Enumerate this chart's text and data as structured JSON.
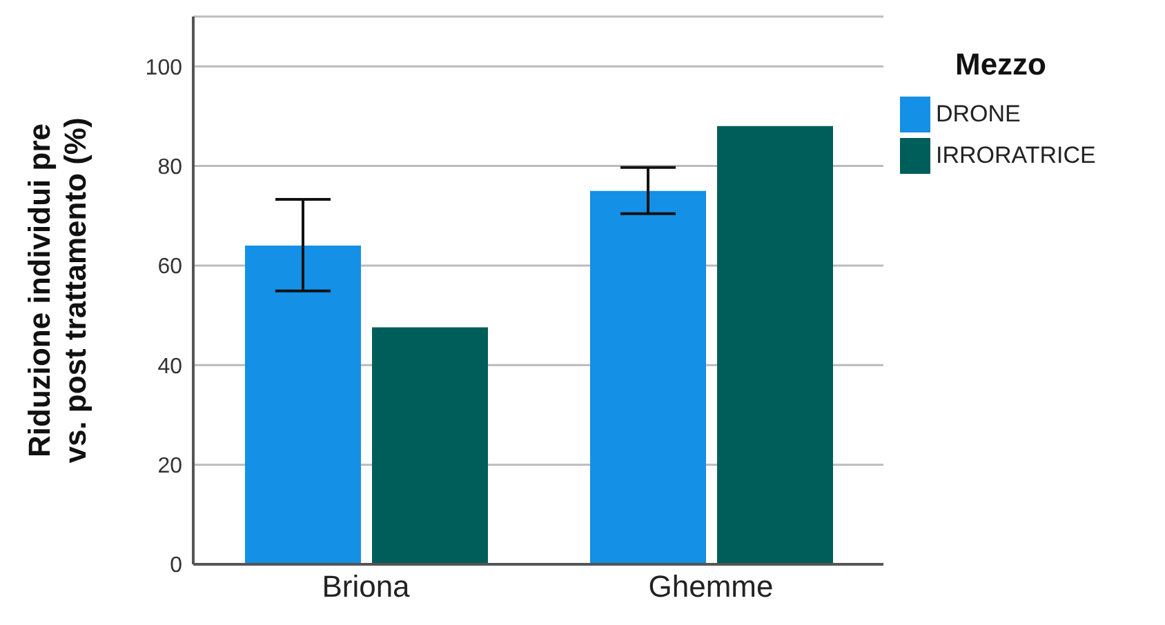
{
  "chart_data": {
    "type": "bar",
    "ylabel": "Riduzione individui pre vs. post trattamento (%)",
    "legend_title": "Mezzo",
    "categories": [
      "Briona",
      "Ghemme"
    ],
    "series": [
      {
        "name": "DRONE",
        "color": "#1490e6",
        "values": [
          64.0,
          75.0
        ],
        "errors": [
          [
            54.9,
            73.3
          ],
          [
            70.4,
            79.7
          ]
        ]
      },
      {
        "name": "IRRORATRICE",
        "color": "#005e5a",
        "values": [
          47.6,
          88.0
        ]
      }
    ],
    "ylim": [
      0,
      110
    ],
    "yticks": [
      0,
      20,
      40,
      60,
      80,
      100
    ],
    "grid": "y",
    "legend": "right"
  }
}
